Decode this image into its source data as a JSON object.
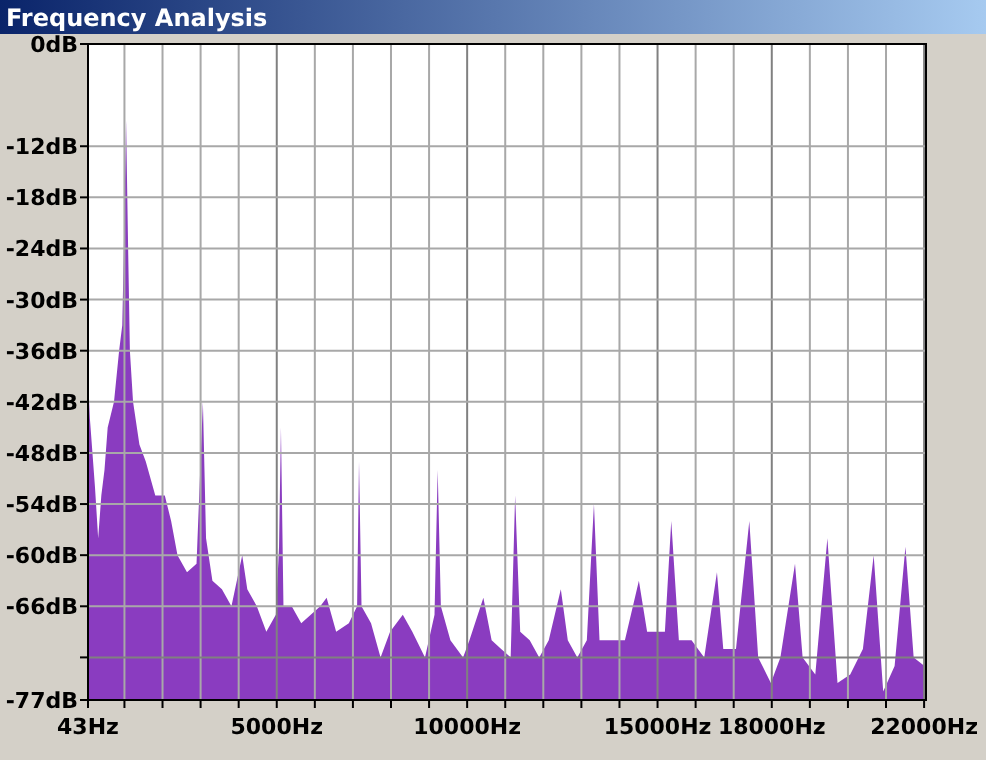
{
  "chart_data": {
    "type": "area",
    "title": "Frequency Analysis",
    "x": [
      43,
      93,
      226,
      310,
      393,
      476,
      560,
      726,
      860,
      943,
      976,
      1043,
      1093,
      1143,
      1226,
      1393,
      1560,
      1810,
      2060,
      2226,
      2393,
      2643,
      2893,
      3060,
      3143,
      3310,
      3560,
      3810,
      4093,
      4226,
      4476,
      4726,
      4976,
      5060,
      5110,
      5176,
      5393,
      5643,
      5893,
      6143,
      6310,
      6560,
      6893,
      7110,
      7160,
      7226,
      7476,
      7726,
      7976,
      8310,
      8560,
      8893,
      9143,
      9226,
      9310,
      9560,
      9893,
      10060,
      10426,
      10643,
      10893,
      11143,
      11260,
      11393,
      11643,
      11893,
      12143,
      12460,
      12643,
      12893,
      13143,
      13330,
      13476,
      13810,
      14143,
      14510,
      14726,
      14976,
      15193,
      15360,
      15560,
      15893,
      16226,
      16560,
      16726,
      17060,
      17410,
      17643,
      17976,
      18226,
      18610,
      18810,
      19143,
      19460,
      19726,
      20060,
      20393,
      20676,
      20926,
      21226,
      21510,
      21726,
      22010
    ],
    "series": [
      {
        "color": "#8a3cc0",
        "values": [
          -39,
          -44,
          -52,
          -58,
          -53,
          -50,
          -45,
          -42,
          -36,
          -33,
          -26,
          -9,
          -23,
          -36,
          -42,
          -47,
          -49,
          -53,
          -53,
          -56,
          -60,
          -62,
          -61,
          -42,
          -58,
          -63,
          -64,
          -66,
          -60,
          -64,
          -66,
          -69,
          -67,
          -59,
          -45,
          -66,
          -66,
          -68,
          -67,
          -66,
          -65,
          -69,
          -68,
          -66,
          -49,
          -66,
          -68,
          -72,
          -69,
          -67,
          -69,
          -72,
          -67,
          -50,
          -66,
          -70,
          -72,
          -70,
          -65,
          -70,
          -71,
          -72,
          -53,
          -69,
          -70,
          -72,
          -70,
          -64,
          -70,
          -72,
          -70,
          -54,
          -70,
          -70,
          -70,
          -63,
          -69,
          -69,
          -69,
          -56,
          -70,
          -70,
          -72,
          -62,
          -71,
          -71,
          -56,
          -72,
          -75,
          -72,
          -61,
          -72,
          -74,
          -58,
          -75,
          -74,
          -71,
          -60,
          -76,
          -73,
          -59,
          -72,
          -73
        ]
      }
    ],
    "xlim": [
      43,
      22050
    ],
    "xticks": [
      {
        "value": 43,
        "label": "43Hz"
      },
      {
        "value": 1000,
        "label": null
      },
      {
        "value": 2000,
        "label": null
      },
      {
        "value": 3000,
        "label": null
      },
      {
        "value": 4000,
        "label": null
      },
      {
        "value": 5000,
        "label": "5000Hz"
      },
      {
        "value": 6000,
        "label": null
      },
      {
        "value": 7000,
        "label": null
      },
      {
        "value": 8000,
        "label": null
      },
      {
        "value": 9000,
        "label": null
      },
      {
        "value": 10000,
        "label": "10000Hz"
      },
      {
        "value": 11000,
        "label": null
      },
      {
        "value": 12000,
        "label": null
      },
      {
        "value": 13000,
        "label": null
      },
      {
        "value": 14000,
        "label": null
      },
      {
        "value": 15000,
        "label": "15000Hz"
      },
      {
        "value": 16000,
        "label": null
      },
      {
        "value": 17000,
        "label": null
      },
      {
        "value": 18000,
        "label": "18000Hz"
      },
      {
        "value": 19000,
        "label": null
      },
      {
        "value": 20000,
        "label": null
      },
      {
        "value": 21000,
        "label": null
      },
      {
        "value": 22000,
        "label": "22000Hz"
      }
    ],
    "ylim": [
      -77,
      0
    ],
    "yticks": [
      {
        "value": 0,
        "label": "0dB"
      },
      {
        "value": -12,
        "label": "-12dB"
      },
      {
        "value": -18,
        "label": "-18dB"
      },
      {
        "value": -24,
        "label": "-24dB"
      },
      {
        "value": -30,
        "label": "-30dB"
      },
      {
        "value": -36,
        "label": "-36dB"
      },
      {
        "value": -42,
        "label": "-42dB"
      },
      {
        "value": -48,
        "label": "-48dB"
      },
      {
        "value": -54,
        "label": "-54dB"
      },
      {
        "value": -60,
        "label": "-60dB"
      },
      {
        "value": -66,
        "label": "-66dB"
      },
      {
        "value": -72,
        "label": null
      },
      {
        "value": -77,
        "label": "-77dB"
      }
    ],
    "grid": true
  }
}
